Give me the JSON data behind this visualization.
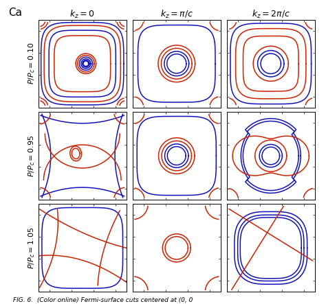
{
  "title": "Ca",
  "col_labels": [
    "$k_z = 0$",
    "$k_z = \\pi/c$",
    "$k_z = 2\\pi/c$"
  ],
  "row_labels": [
    "$P/P_c = 0.10$",
    "$P/P_c = 0.95$",
    "$P/P_c = 1.05$"
  ],
  "blue": "#1111bb",
  "red": "#cc2200",
  "lw": 1.1,
  "figsize": [
    4.74,
    4.43
  ],
  "dpi": 100,
  "caption": "FIG. 6.  (Color online) Fermi-surface cuts centered at (0, 0"
}
